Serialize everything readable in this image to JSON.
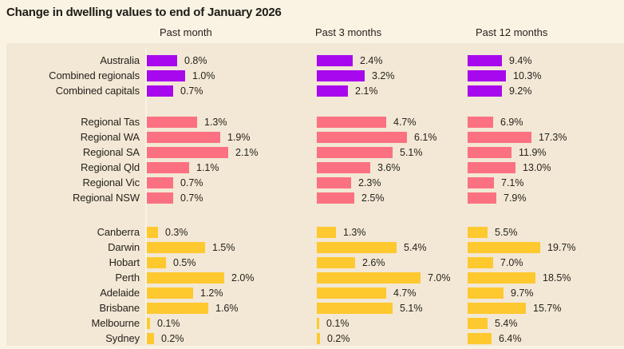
{
  "title": "Change in dwelling values to end of January 2026",
  "colors": {
    "page_bg": "#faf3e3",
    "panel_bg": "#f2e8d5",
    "axis_line": "#faf3e3",
    "text": "#27221d",
    "purple": "#a708ee",
    "pink": "#fb7181",
    "yellow": "#fec82f"
  },
  "chart_data": {
    "type": "bar",
    "orientation": "horizontal",
    "title": "Change in dwelling values to end of January 2026",
    "columns": [
      "Past month",
      "Past 3 months",
      "Past 12 months"
    ],
    "value_suffix": "%",
    "legend": "none",
    "grid": "off",
    "groups": [
      {
        "name": "national",
        "color_key": "purple",
        "rows": [
          {
            "label": "Australia",
            "values": [
              0.8,
              2.4,
              9.4
            ]
          },
          {
            "label": "Combined regionals",
            "values": [
              1.0,
              3.2,
              10.3
            ]
          },
          {
            "label": "Combined capitals",
            "values": [
              0.7,
              2.1,
              9.2
            ]
          }
        ]
      },
      {
        "name": "regionals",
        "color_key": "pink",
        "rows": [
          {
            "label": "Regional Tas",
            "values": [
              1.3,
              4.7,
              6.9
            ]
          },
          {
            "label": "Regional WA",
            "values": [
              1.9,
              6.1,
              17.3
            ]
          },
          {
            "label": "Regional SA",
            "values": [
              2.1,
              5.1,
              11.9
            ]
          },
          {
            "label": "Regional Qld",
            "values": [
              1.1,
              3.6,
              13.0
            ]
          },
          {
            "label": "Regional Vic",
            "values": [
              0.7,
              2.3,
              7.1
            ]
          },
          {
            "label": "Regional NSW",
            "values": [
              0.7,
              2.5,
              7.9
            ]
          }
        ]
      },
      {
        "name": "capitals",
        "color_key": "yellow",
        "rows": [
          {
            "label": "Canberra",
            "values": [
              0.3,
              1.3,
              5.5
            ]
          },
          {
            "label": "Darwin",
            "values": [
              1.5,
              5.4,
              19.7
            ]
          },
          {
            "label": "Hobart",
            "values": [
              0.5,
              2.6,
              7.0
            ]
          },
          {
            "label": "Perth",
            "values": [
              2.0,
              7.0,
              18.5
            ]
          },
          {
            "label": "Adelaide",
            "values": [
              1.2,
              4.7,
              9.7
            ]
          },
          {
            "label": "Brisbane",
            "values": [
              1.6,
              5.1,
              15.7
            ]
          },
          {
            "label": "Melbourne",
            "values": [
              0.1,
              0.1,
              5.4
            ]
          },
          {
            "label": "Sydney",
            "values": [
              0.2,
              0.2,
              6.4
            ]
          }
        ]
      }
    ]
  }
}
